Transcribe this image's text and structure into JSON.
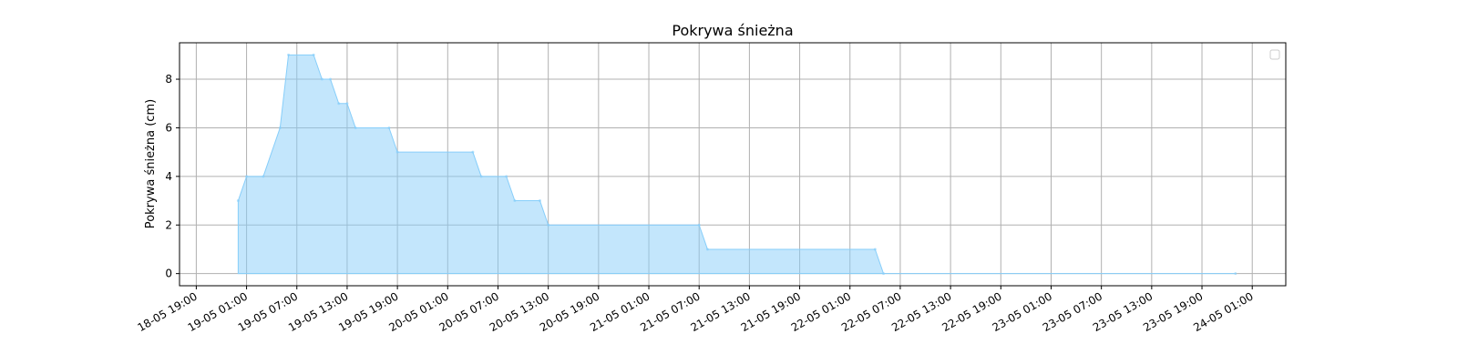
{
  "chart_data": {
    "type": "area",
    "title": "Pokrywa śnieżna",
    "xlabel": "",
    "ylabel": "Pokrywa śnieżna (cm)",
    "xlim": [
      "2025-05-18T17:00",
      "2025-05-24T05:00"
    ],
    "ylim": [
      -0.5,
      9.5
    ],
    "y_ticks": [
      0,
      2,
      4,
      6,
      8
    ],
    "x_ticks": [
      {
        "time": "2025-05-18T19:00",
        "label": "18-05 19:00"
      },
      {
        "time": "2025-05-19T01:00",
        "label": "19-05 01:00"
      },
      {
        "time": "2025-05-19T07:00",
        "label": "19-05 07:00"
      },
      {
        "time": "2025-05-19T13:00",
        "label": "19-05 13:00"
      },
      {
        "time": "2025-05-19T19:00",
        "label": "19-05 19:00"
      },
      {
        "time": "2025-05-20T01:00",
        "label": "20-05 01:00"
      },
      {
        "time": "2025-05-20T07:00",
        "label": "20-05 07:00"
      },
      {
        "time": "2025-05-20T13:00",
        "label": "20-05 13:00"
      },
      {
        "time": "2025-05-20T19:00",
        "label": "20-05 19:00"
      },
      {
        "time": "2025-05-21T01:00",
        "label": "21-05 01:00"
      },
      {
        "time": "2025-05-21T07:00",
        "label": "21-05 07:00"
      },
      {
        "time": "2025-05-21T13:00",
        "label": "21-05 13:00"
      },
      {
        "time": "2025-05-21T19:00",
        "label": "21-05 19:00"
      },
      {
        "time": "2025-05-22T01:00",
        "label": "22-05 01:00"
      },
      {
        "time": "2025-05-22T07:00",
        "label": "22-05 07:00"
      },
      {
        "time": "2025-05-22T13:00",
        "label": "22-05 13:00"
      },
      {
        "time": "2025-05-22T19:00",
        "label": "22-05 19:00"
      },
      {
        "time": "2025-05-23T01:00",
        "label": "23-05 01:00"
      },
      {
        "time": "2025-05-23T07:00",
        "label": "23-05 07:00"
      },
      {
        "time": "2025-05-23T13:00",
        "label": "23-05 13:00"
      },
      {
        "time": "2025-05-23T19:00",
        "label": "23-05 19:00"
      },
      {
        "time": "2025-05-24T01:00",
        "label": "24-05 01:00"
      }
    ],
    "grid": true,
    "legend": {
      "position": "top-right",
      "entries": []
    },
    "series": [
      {
        "color": "#87CEFA",
        "x": [
          "2025-05-19T00:00",
          "2025-05-19T01:00",
          "2025-05-19T03:00",
          "2025-05-19T05:00",
          "2025-05-19T06:00",
          "2025-05-19T09:00",
          "2025-05-19T10:00",
          "2025-05-19T11:00",
          "2025-05-19T12:00",
          "2025-05-19T13:00",
          "2025-05-19T14:00",
          "2025-05-19T18:00",
          "2025-05-19T19:00",
          "2025-05-20T04:00",
          "2025-05-20T05:00",
          "2025-05-20T08:00",
          "2025-05-20T09:00",
          "2025-05-20T12:00",
          "2025-05-20T13:00",
          "2025-05-21T07:00",
          "2025-05-21T08:00",
          "2025-05-22T04:00",
          "2025-05-22T05:00",
          "2025-05-23T23:00"
        ],
        "values": [
          3,
          4,
          4,
          6,
          9,
          9,
          8,
          8,
          7,
          7,
          6,
          6,
          5,
          5,
          4,
          4,
          3,
          3,
          2,
          2,
          1,
          1,
          0,
          0
        ]
      }
    ]
  }
}
